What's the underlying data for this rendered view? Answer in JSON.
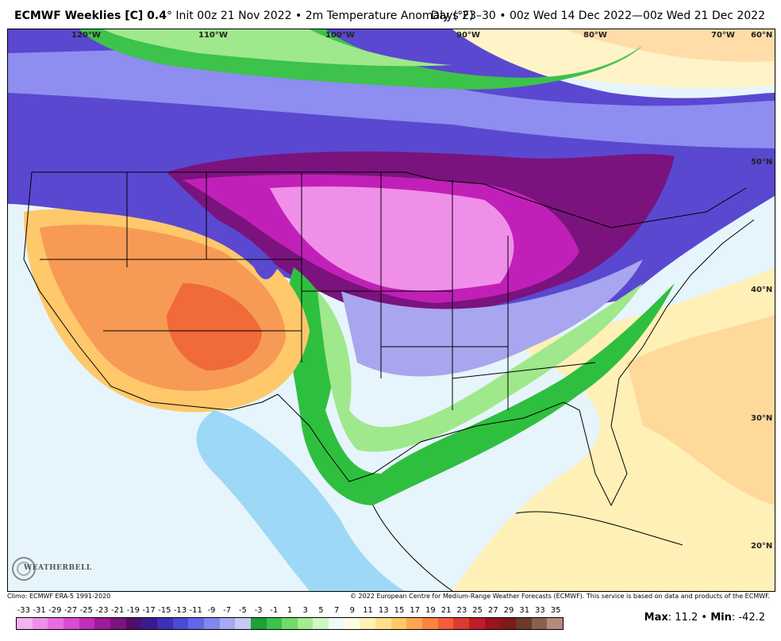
{
  "header": {
    "model": "ECMWF Weeklies [C] 0.4",
    "degree_symbol": "°",
    "init": "Init 00z 21 Nov 2022",
    "variable": "2m Temperature Anomaly (°F)",
    "valid": "Days 23–30 • 00z Wed 14 Dec 2022—00z Wed 21 Dec 2022"
  },
  "longitude_labels": [
    "120°W",
    "110°W",
    "100°W",
    "90°W",
    "80°W",
    "70°W",
    "60°N"
  ],
  "latitude_labels": [
    "50°N",
    "40°N",
    "30°N",
    "20°N"
  ],
  "footer": {
    "climo": "Climo: ECMWF ERA-5 1991-2020",
    "copyright": "© 2022 European Centre for Medium-Range Weather Forecasts (ECMWF). This service is based on data and products of the ECMWF.",
    "max_label": "Max",
    "max_value": "11.2",
    "min_label": "Min",
    "min_value": "-42.2"
  },
  "logo": {
    "text": "WEATHERBELL"
  },
  "colorbar": {
    "ticks": [
      "-33",
      "-31",
      "-29",
      "-27",
      "-25",
      "-23",
      "-21",
      "-19",
      "-17",
      "-15",
      "-13",
      "-11",
      "-9",
      "-7",
      "-5",
      "-3",
      "-1",
      "1",
      "3",
      "5",
      "7",
      "9",
      "11",
      "13",
      "15",
      "17",
      "19",
      "21",
      "23",
      "25",
      "27",
      "29",
      "31",
      "33",
      "35"
    ],
    "colors": [
      "#f3b3f0",
      "#ee90ea",
      "#e66ee0",
      "#d94bd2",
      "#c22dbb",
      "#9e1a9c",
      "#7a137e",
      "#4d0f6b",
      "#3a1b8f",
      "#3d2fb8",
      "#4c49d8",
      "#6466e8",
      "#8486ef",
      "#a6a8f2",
      "#c6c8f5",
      "#1e9f3a",
      "#3dc24c",
      "#6fdc68",
      "#a4eb92",
      "#d1f5c3",
      "#eefaf9",
      "#fffde2",
      "#fff1b4",
      "#ffe08a",
      "#ffc86a",
      "#ffa651",
      "#ff8243",
      "#f45c3a",
      "#de3a30",
      "#c01d26",
      "#9a1320",
      "#7e1a1a",
      "#6b3a2a",
      "#8a6050",
      "#b48a7c"
    ]
  },
  "anomaly_colors": {
    "deep_pink": "#f08fe8",
    "magenta": "#c020b8",
    "purple": "#4a1a8a",
    "blue_purple": "#5a48d0",
    "lavender": "#a8a6ee",
    "green": "#2fbf3f",
    "light_green": "#9fe88c",
    "pale_blue": "#cfefff",
    "light_blue": "#9ed8f7",
    "pale_yellow": "#fff3b0",
    "orange": "#f79a55",
    "red_orange": "#f06a3a"
  }
}
